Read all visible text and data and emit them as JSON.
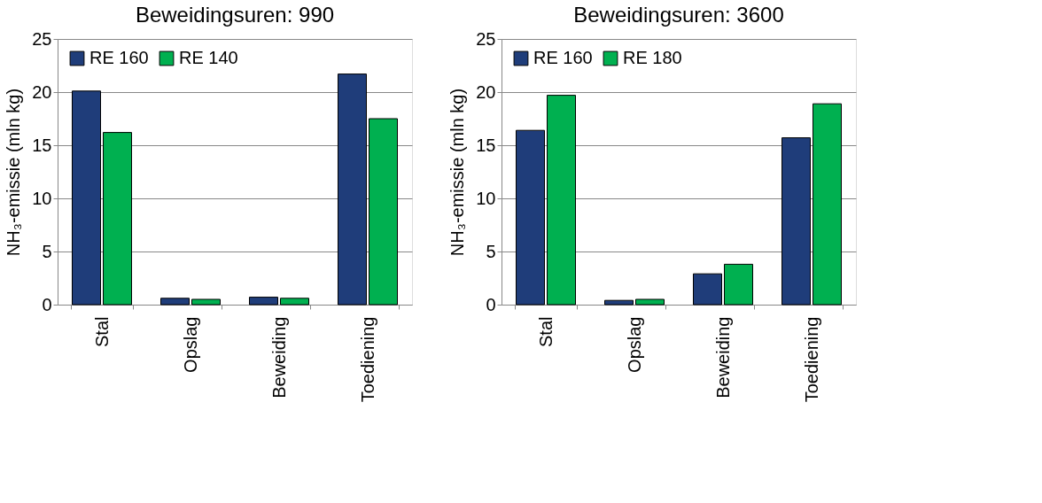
{
  "chart_data": [
    {
      "type": "bar",
      "title": "Beweidingsuren: 990",
      "ylabel": "NH₃-emissie (mln kg)",
      "categories": [
        "Stal",
        "Opslag",
        "Beweiding",
        "Toediening"
      ],
      "series": [
        {
          "name": "RE 160",
          "color": "#1f3d7a",
          "values": [
            20.1,
            0.6,
            0.7,
            21.7
          ]
        },
        {
          "name": "RE 140",
          "color": "#00b050",
          "values": [
            16.2,
            0.5,
            0.6,
            17.5
          ]
        }
      ],
      "ylim": [
        0,
        25
      ],
      "yticks": [
        0,
        5,
        10,
        15,
        20,
        25
      ],
      "grid": "y",
      "legend": "top left"
    },
    {
      "type": "bar",
      "title": "Beweidingsuren: 3600",
      "ylabel": "NH₃-emissie (mln kg)",
      "categories": [
        "Stal",
        "Opslag",
        "Beweiding",
        "Toediening"
      ],
      "series": [
        {
          "name": "RE 160",
          "color": "#1f3d7a",
          "values": [
            16.4,
            0.4,
            2.9,
            15.7
          ]
        },
        {
          "name": "RE 180",
          "color": "#00b050",
          "values": [
            19.7,
            0.5,
            3.8,
            18.9
          ]
        }
      ],
      "ylim": [
        0,
        25
      ],
      "yticks": [
        0,
        5,
        10,
        15,
        20,
        25
      ],
      "grid": "y",
      "legend": "top left"
    }
  ]
}
